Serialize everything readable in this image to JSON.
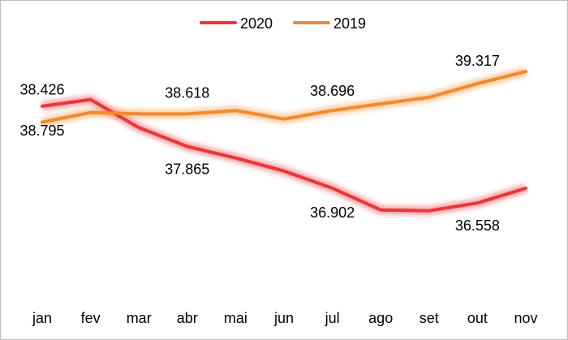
{
  "chart_data": {
    "type": "line",
    "categories": [
      "jan",
      "fev",
      "mar",
      "abr",
      "mai",
      "jun",
      "jul",
      "ago",
      "set",
      "out",
      "nov"
    ],
    "series": [
      {
        "name": "2020",
        "color": "#e8363c",
        "values": [
          38.795,
          38.95,
          38.3,
          37.865,
          37.6,
          37.3,
          36.902,
          36.4,
          36.38,
          36.558,
          36.9
        ]
      },
      {
        "name": "2019",
        "color": "#f28a2e",
        "values": [
          38.426,
          38.65,
          38.618,
          38.618,
          38.696,
          38.5,
          38.696,
          38.85,
          39.0,
          39.317,
          39.6
        ]
      }
    ],
    "data_labels": [
      {
        "series": 1,
        "index": 0,
        "text": "38.426"
      },
      {
        "series": 0,
        "index": 0,
        "text": "38.795"
      },
      {
        "series": 1,
        "index": 3,
        "text": "38.618"
      },
      {
        "series": 0,
        "index": 3,
        "text": "37.865"
      },
      {
        "series": 1,
        "index": 6,
        "text": "38.696"
      },
      {
        "series": 0,
        "index": 6,
        "text": "36.902"
      },
      {
        "series": 1,
        "index": 9,
        "text": "39.317"
      },
      {
        "series": 0,
        "index": 9,
        "text": "36.558"
      }
    ],
    "legend_position": "top-center",
    "grid": false,
    "ylim": [
      34.5,
      40.5
    ]
  }
}
